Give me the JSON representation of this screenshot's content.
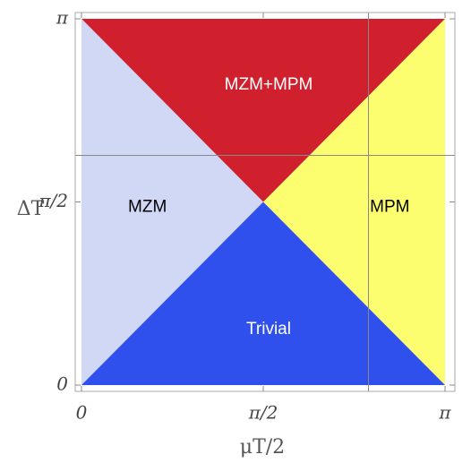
{
  "chart_data": {
    "type": "region",
    "xlabel": "μT/2",
    "ylabel": "ΔT",
    "xlim": [
      0,
      3.14159
    ],
    "ylim": [
      0,
      3.14159
    ],
    "xticks": [
      0,
      {
        "value": 1.5708,
        "label": "π/2"
      },
      {
        "value": 3.14159,
        "label": "π"
      }
    ],
    "yticks": [
      0,
      {
        "value": 1.5708,
        "label": "π/2"
      },
      {
        "value": 3.14159,
        "label": "π"
      }
    ],
    "regions": [
      {
        "name": "MZM+MPM",
        "color": "#d0202e",
        "label_color": "#ffffff",
        "x": [
          0,
          3.14159,
          1.5708
        ],
        "y": [
          3.14159,
          3.14159,
          1.5708
        ]
      },
      {
        "name": "MZM",
        "color": "#d0d8f6",
        "label_color": "#000000",
        "x": [
          0,
          0,
          1.5708
        ],
        "y": [
          0,
          3.14159,
          1.5708
        ]
      },
      {
        "name": "MPM",
        "color": "#fdfd70",
        "label_color": "#000000",
        "x": [
          3.14159,
          3.14159,
          1.5708
        ],
        "y": [
          0,
          3.14159,
          1.5708
        ]
      },
      {
        "name": "Trivial",
        "color": "#3050ee",
        "label_color": "#ffffff",
        "x": [
          0,
          3.14159,
          1.5708
        ],
        "y": [
          0,
          0,
          1.5708
        ]
      }
    ],
    "crosshair": {
      "x": 2.48,
      "y": 1.97
    }
  }
}
